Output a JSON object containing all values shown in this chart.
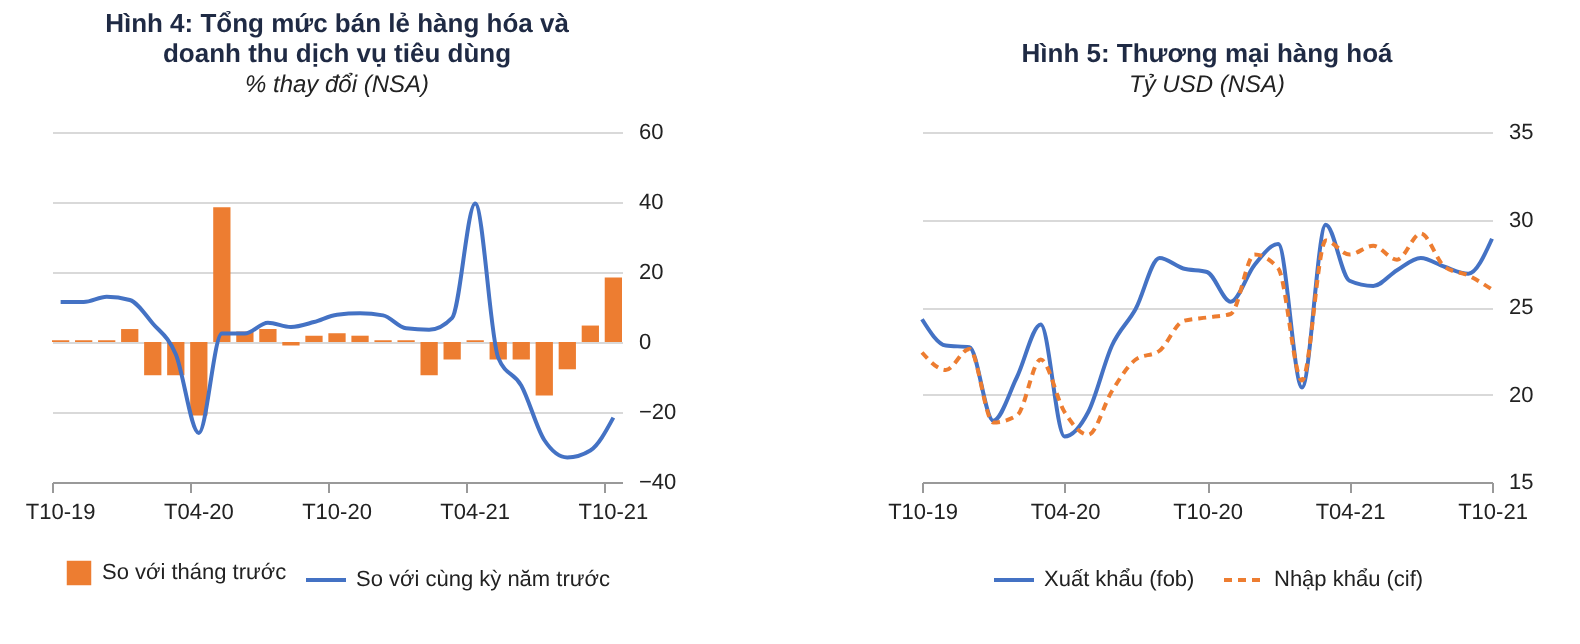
{
  "chart_data": [
    {
      "type": "bar",
      "title": "Hình 4: Tổng mức bán lẻ hàng hóa và doanh thu dịch vụ tiêu dùng",
      "subtitle": "% thay đổi (NSA)",
      "categories": [
        "T10-19",
        null,
        null,
        null,
        null,
        null,
        "T04-20",
        null,
        null,
        null,
        null,
        null,
        "T10-20",
        null,
        null,
        null,
        null,
        null,
        "T04-21",
        null,
        null,
        null,
        null,
        null,
        "T10-21"
      ],
      "series": [
        {
          "type": "bar",
          "name": "So với tháng trước",
          "color": "#ed7d31",
          "values": [
            0.5,
            0.5,
            0.5,
            3.7,
            -9.5,
            -9.5,
            -21,
            38.5,
            3,
            3.7,
            -1,
            1.8,
            2.5,
            1.8,
            0.5,
            0.5,
            -9.5,
            -5,
            0.5,
            -5,
            -5,
            -15.3,
            -7.8,
            4.7,
            18.4
          ]
        },
        {
          "type": "line",
          "name": "So với cùng kỳ năm trước",
          "color": "#4472c4",
          "line_style": "solid",
          "values": [
            11.4,
            11.4,
            12.9,
            12,
            5.3,
            -3.5,
            -26,
            2.4,
            2.4,
            5.5,
            4.3,
            5.7,
            7.8,
            8.2,
            7.6,
            3.9,
            3.5,
            6.9,
            39.6,
            -4.5,
            -12.4,
            -28,
            -33,
            -31,
            -21.6
          ]
        }
      ],
      "ylim": [
        -40,
        60
      ],
      "yticks": [
        -40,
        -20,
        0,
        20,
        40,
        60
      ],
      "grid": "y",
      "legend": "bottom"
    },
    {
      "type": "line",
      "title": "Hình 5: Thương mại hàng hoá",
      "subtitle": "Tỷ USD (NSA)",
      "categories": [
        "T10-19",
        null,
        null,
        null,
        null,
        null,
        "T04-20",
        null,
        null,
        null,
        null,
        null,
        "T10-20",
        null,
        null,
        null,
        null,
        null,
        "T04-21",
        null,
        null,
        null,
        null,
        null,
        "T10-21"
      ],
      "series": [
        {
          "type": "line",
          "name": "Xuất khẩu (fob)",
          "color": "#4472c4",
          "line_style": "solid",
          "values": [
            24.3,
            22.8,
            22.7,
            18.5,
            21,
            24,
            17.6,
            19,
            22.8,
            24.9,
            27.8,
            27.2,
            27,
            25.3,
            27.4,
            28.6,
            20.4,
            29.7,
            26.5,
            26.2,
            27.1,
            27.8,
            27.3,
            26.9,
            28.9
          ]
        },
        {
          "type": "line",
          "name": "Nhập khẩu (cif)",
          "color": "#ed7d31",
          "line_style": "dashed",
          "values": [
            22.4,
            21.4,
            22.6,
            18.4,
            18.8,
            22,
            19,
            17.7,
            20.2,
            22,
            22.5,
            24.2,
            24.4,
            24.6,
            28,
            27.2,
            20.8,
            28.8,
            28,
            28.5,
            27.7,
            29.2,
            27.3,
            26.8,
            26
          ]
        }
      ],
      "ylim": [
        15,
        35
      ],
      "yticks": [
        15,
        20,
        25,
        30,
        35
      ],
      "grid": "y",
      "legend": "bottom"
    }
  ]
}
